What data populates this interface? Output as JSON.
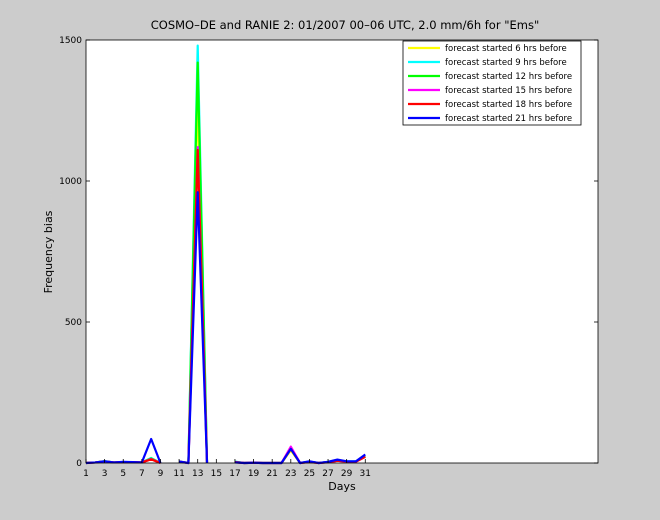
{
  "chart_data": {
    "type": "line",
    "title": "COSMO–DE and RANIE 2: 01/2007 00–06 UTC, 2.0 mm/6h for \"Ems\"",
    "xlabel": "Days",
    "ylabel": "Frequency bias",
    "xlim": [
      1,
      56
    ],
    "ylim": [
      0,
      1500
    ],
    "xticks": [
      1,
      3,
      5,
      7,
      9,
      11,
      13,
      15,
      17,
      19,
      21,
      23,
      25,
      27,
      29,
      31
    ],
    "yticks": [
      0,
      500,
      1000,
      1500
    ],
    "grid": false,
    "legend_position": "top-right",
    "x": [
      1,
      2,
      3,
      4,
      5,
      6,
      7,
      8,
      9,
      10,
      11,
      12,
      13,
      14,
      15,
      16,
      17,
      18,
      19,
      20,
      21,
      22,
      23,
      24,
      25,
      26,
      27,
      28,
      29,
      30,
      31
    ],
    "series": [
      {
        "name": "forecast started 6 hrs before",
        "color": "#ffff00",
        "values": [
          0,
          2,
          6,
          2,
          3,
          3,
          2,
          15,
          0,
          null,
          5,
          0,
          1300,
          0,
          null,
          null,
          3,
          0,
          1,
          0,
          0,
          0,
          45,
          0,
          4,
          0,
          3,
          8,
          5,
          5,
          22
        ]
      },
      {
        "name": "forecast started 9 hrs before",
        "color": "#00ffff",
        "values": [
          0,
          2,
          7,
          2,
          3,
          3,
          2,
          18,
          0,
          null,
          6,
          0,
          1480,
          0,
          null,
          null,
          5,
          0,
          1,
          0,
          0,
          0,
          52,
          0,
          5,
          0,
          4,
          10,
          6,
          6,
          25
        ]
      },
      {
        "name": "forecast started 12 hrs before",
        "color": "#00ff00",
        "values": [
          0,
          2,
          6,
          2,
          3,
          3,
          2,
          16,
          0,
          null,
          5,
          0,
          1420,
          0,
          null,
          null,
          4,
          0,
          1,
          0,
          0,
          0,
          50,
          0,
          4,
          0,
          3,
          9,
          5,
          5,
          24
        ]
      },
      {
        "name": "forecast started 15 hrs before",
        "color": "#ff00ff",
        "values": [
          0,
          2,
          5,
          2,
          3,
          3,
          2,
          14,
          0,
          null,
          5,
          0,
          1120,
          0,
          null,
          null,
          3,
          0,
          1,
          0,
          0,
          0,
          58,
          0,
          4,
          0,
          3,
          8,
          5,
          5,
          22
        ]
      },
      {
        "name": "forecast started 18 hrs before",
        "color": "#ff0000",
        "values": [
          0,
          2,
          6,
          2,
          3,
          3,
          2,
          13,
          0,
          null,
          5,
          0,
          1110,
          0,
          null,
          null,
          3,
          0,
          1,
          0,
          0,
          0,
          50,
          0,
          4,
          0,
          3,
          8,
          5,
          5,
          22
        ]
      },
      {
        "name": "forecast started 21 hrs before",
        "color": "#0000ff",
        "values": [
          0,
          2,
          6,
          2,
          4,
          3,
          2,
          85,
          0,
          null,
          5,
          0,
          960,
          0,
          null,
          null,
          2,
          0,
          1,
          0,
          0,
          0,
          50,
          0,
          6,
          0,
          4,
          12,
          6,
          6,
          30
        ]
      }
    ]
  }
}
